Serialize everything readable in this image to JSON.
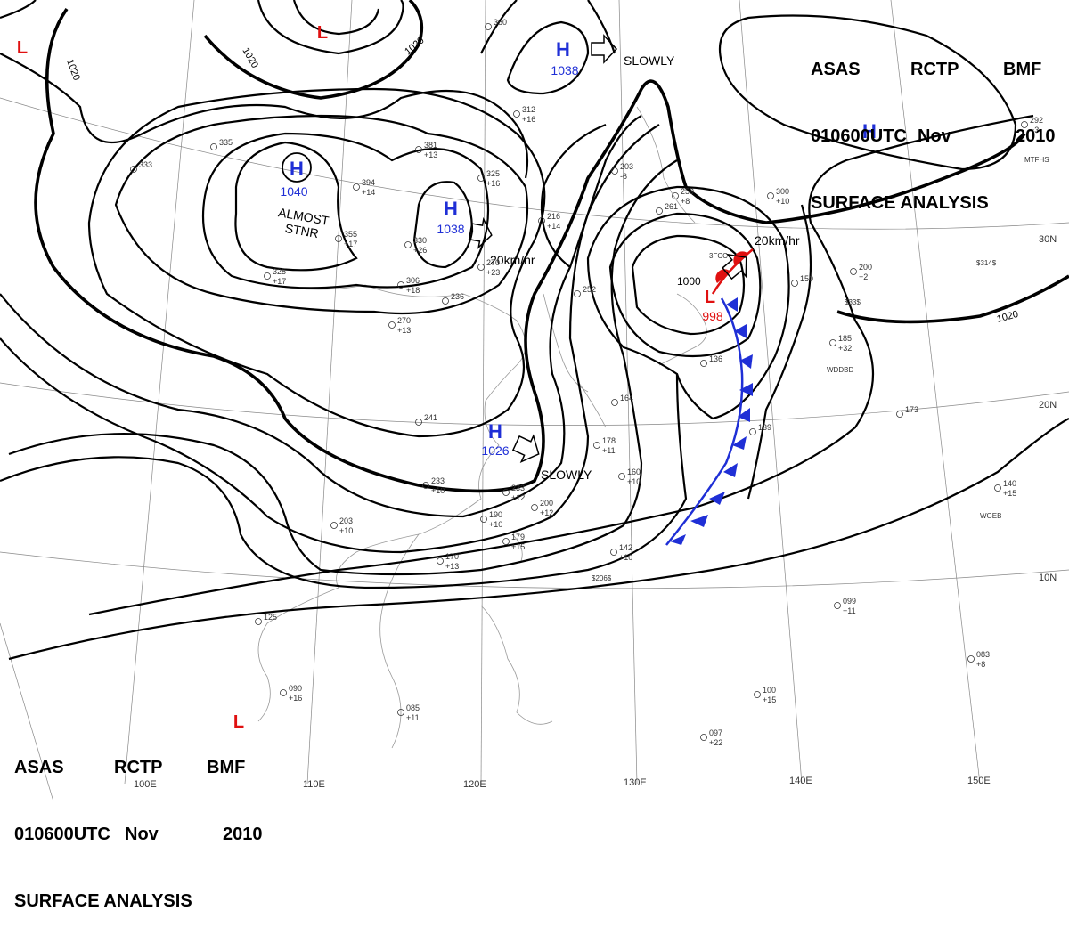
{
  "header": {
    "agency": "ASAS",
    "station": "RCTP",
    "unit": "BMF",
    "time": "010600UTC",
    "month": "Nov",
    "year": "2010",
    "title": "SURFACE ANALYSIS"
  },
  "pressure_centers": [
    {
      "type": "H",
      "value": "1040",
      "note": "ALMOST STNR",
      "color": "#1f2fd6"
    },
    {
      "type": "H",
      "value": "1038",
      "motion": "20km/hr",
      "color": "#1f2fd6"
    },
    {
      "type": "H",
      "value": "1038",
      "motion": "SLOWLY",
      "color": "#1f2fd6"
    },
    {
      "type": "H",
      "value": "1026",
      "motion": "SLOWLY",
      "color": "#1f2fd6"
    },
    {
      "type": "H",
      "value": "",
      "color": "#1f2fd6"
    },
    {
      "type": "L",
      "value": "998",
      "motion": "20km/hr",
      "color": "#e01010"
    },
    {
      "type": "L",
      "value": "",
      "color": "#e01010"
    },
    {
      "type": "L",
      "value": "",
      "color": "#e01010"
    },
    {
      "type": "L",
      "value": "",
      "color": "#e01010"
    }
  ],
  "isobar_labels": [
    "1020",
    "1020",
    "1020",
    "1020",
    "1000"
  ],
  "longitude_labels": [
    "100E",
    "110E",
    "120E",
    "130E",
    "140E",
    "150E"
  ],
  "latitude_labels": [
    "30N",
    "20N",
    "10N"
  ],
  "stations": [
    {
      "p": "360"
    },
    {
      "p": "312",
      "t": "+16"
    },
    {
      "p": "381",
      "t": "+13"
    },
    {
      "p": "394",
      "t": "+14"
    },
    {
      "p": "355",
      "t": "+17"
    },
    {
      "p": "330",
      "t": "+26"
    },
    {
      "p": "325",
      "t": "+16"
    },
    {
      "p": "306",
      "t": "+18"
    },
    {
      "p": "325",
      "t": "+17"
    },
    {
      "p": "335"
    },
    {
      "p": "333"
    },
    {
      "p": "270",
      "t": "+23"
    },
    {
      "p": "236"
    },
    {
      "p": "270",
      "t": "+13"
    },
    {
      "p": "241"
    },
    {
      "p": "233",
      "t": "+10"
    },
    {
      "p": "203",
      "t": "+10"
    },
    {
      "p": "216",
      "t": "+14"
    },
    {
      "p": "203",
      "t": "-6"
    },
    {
      "p": "259",
      "t": "+8"
    },
    {
      "p": "261"
    },
    {
      "p": "300",
      "t": "+10"
    },
    {
      "p": "200",
      "t": "+2"
    },
    {
      "p": "185",
      "t": "+32"
    },
    {
      "p": "173"
    },
    {
      "p": "139"
    },
    {
      "p": "178",
      "t": "+11"
    },
    {
      "p": "160",
      "t": "+10"
    },
    {
      "p": "233",
      "t": "+12"
    },
    {
      "p": "200",
      "t": "+12"
    },
    {
      "p": "190",
      "t": "+10"
    },
    {
      "p": "179",
      "t": "+15"
    },
    {
      "p": "170",
      "t": "+13"
    },
    {
      "p": "142",
      "t": "+10"
    },
    {
      "p": "140",
      "t": "+15"
    },
    {
      "p": "099",
      "t": "+11"
    },
    {
      "p": "083",
      "t": "+8"
    },
    {
      "p": "100",
      "t": "+15"
    },
    {
      "p": "097",
      "t": "+22"
    },
    {
      "p": "085",
      "t": "+11"
    },
    {
      "p": "090",
      "t": "+16"
    },
    {
      "p": "125"
    },
    {
      "p": "292",
      "t": "+3"
    },
    {
      "p": "150"
    },
    {
      "p": "136"
    },
    {
      "p": "252"
    },
    {
      "p": "164"
    }
  ],
  "annotations": [
    "MTFHS",
    "WGEB",
    "WDDBD",
    "$206$",
    "$314$",
    "$33$",
    "3FCC"
  ],
  "colors": {
    "high": "#1f2fd6",
    "low": "#e01010",
    "cold_front": "#1f2fd6",
    "warm_front": "#e01010",
    "isobar": "#000000",
    "coastline": "#999999"
  }
}
